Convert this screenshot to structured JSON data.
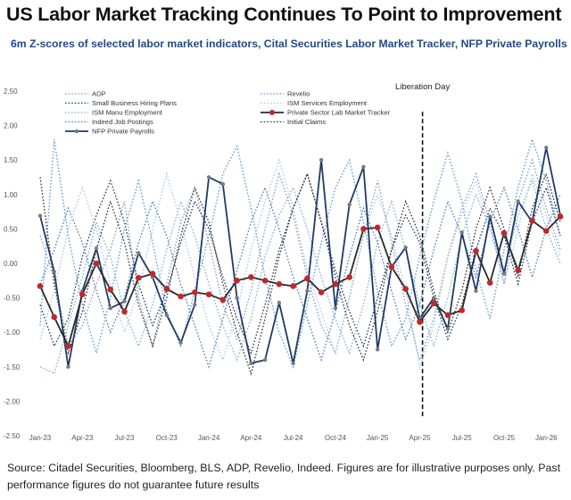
{
  "header": {
    "title": "US Labor Market Tracking Continues To Point to Improvement",
    "subtitle": "6m Z-scores of selected labor market indicators, Cital Securities Labor Market Tracker, NFP Private Payrolls"
  },
  "footer": {
    "line1": "Source: Citadel Securities, Bloomberg, BLS, ADP, Revelio, Indeed. Figures are for illustrative purposes only. Past",
    "line2": "performance figures do not guarantee future results"
  },
  "chart_data": {
    "type": "line",
    "ylim": [
      -2.5,
      2.5
    ],
    "yticks": [
      "2.50",
      "2.00",
      "1.50",
      "1.00",
      "0.50",
      "0.00",
      "-0.50",
      "-1.00",
      "-1.50",
      "-2.00",
      "-2.50"
    ],
    "ytick_values": [
      2.5,
      2.0,
      1.5,
      1.0,
      0.5,
      0.0,
      -0.5,
      -1.0,
      -1.5,
      -2.0,
      -2.5
    ],
    "xticks": [
      "Jan-23",
      "Apr-23",
      "Jul-23",
      "Oct-23",
      "Jan-24",
      "Apr-24",
      "Jul-24",
      "Oct-24",
      "Jan-25",
      "Apr-25",
      "Jul-25",
      "Oct-25",
      "Jan-26"
    ],
    "xtick_index": [
      0,
      3,
      6,
      9,
      12,
      15,
      18,
      21,
      24,
      27,
      30,
      33,
      36
    ],
    "n_points": 38,
    "grid": false,
    "legend_position": "top-left",
    "annotation": {
      "label": "Liberation Day",
      "x_index": 27.2
    },
    "series": [
      {
        "name": "ADP",
        "style": "dotted",
        "color": "#8a9db5",
        "values": [
          0.4,
          -0.2,
          -1.2,
          -0.9,
          -0.3,
          0.2,
          0.9,
          -0.5,
          -1.2,
          -0.3,
          0.6,
          1.1,
          0.3,
          -0.6,
          -1.1,
          -0.4,
          0.5,
          1.3,
          0.7,
          -0.2,
          -0.9,
          -1.3,
          -0.5,
          0.4,
          1.2,
          0.3,
          -0.6,
          -1.4,
          -0.8,
          0.1,
          0.8,
          1.3,
          0.6,
          -0.3,
          0.9,
          1.5,
          0.8,
          0.2
        ]
      },
      {
        "name": "Small Business Hiring Plans",
        "style": "dotted",
        "color": "#1f3a60",
        "values": [
          -0.6,
          -1.2,
          -0.8,
          0.1,
          0.7,
          1.2,
          0.6,
          -0.3,
          -0.9,
          -0.4,
          0.3,
          0.9,
          0.5,
          -0.2,
          -0.8,
          -1.3,
          -0.6,
          0.2,
          0.8,
          1.3,
          0.6,
          -0.1,
          -0.7,
          -1.2,
          -0.5,
          0.2,
          0.7,
          0.3,
          -0.5,
          -1.1,
          -0.6,
          0.2,
          0.8,
          0.4,
          -0.3,
          0.6,
          1.1,
          0.4
        ]
      },
      {
        "name": "ISM Manu Employment",
        "style": "dotted",
        "color": "#7fb1d8",
        "values": [
          -1.5,
          -1.6,
          -0.9,
          -0.2,
          0.6,
          0.1,
          -0.7,
          -1.2,
          -0.6,
          0.2,
          0.9,
          0.4,
          -0.3,
          -0.9,
          -1.4,
          -0.8,
          0.1,
          0.7,
          1.1,
          0.5,
          -0.2,
          -0.8,
          -1.3,
          -0.6,
          0.3,
          0.9,
          0.2,
          -0.6,
          -1.2,
          -0.5,
          0.4,
          1.0,
          0.5,
          -0.1,
          0.7,
          1.2,
          0.5,
          0.0
        ]
      },
      {
        "name": "Indeed Job Postings",
        "style": "dotted",
        "color": "#4a7eb5",
        "values": [
          -0.3,
          0.2,
          0.8,
          0.3,
          -0.4,
          -1.0,
          -0.5,
          0.3,
          0.9,
          0.4,
          -0.3,
          -0.9,
          -1.5,
          -0.8,
          -0.1,
          0.6,
          1.1,
          0.5,
          -0.2,
          -0.8,
          -1.4,
          -0.7,
          0.1,
          0.8,
          0.3,
          -0.4,
          -1.1,
          -0.6,
          0.2,
          0.9,
          0.4,
          -0.2,
          0.6,
          1.1,
          0.5,
          -0.2,
          0.5,
          1.0
        ]
      },
      {
        "name": "NFP Private Payrolls",
        "style": "solid-markers",
        "color": "#1f3a68",
        "marker_color": "#7a7a7a",
        "values": [
          0.69,
          -0.12,
          -1.5,
          -0.4,
          0.22,
          -0.65,
          -0.55,
          0.15,
          -0.2,
          -0.75,
          -1.15,
          -0.6,
          1.25,
          1.15,
          -0.5,
          -1.45,
          -1.4,
          -0.57,
          -1.45,
          -0.4,
          1.5,
          -0.65,
          0.85,
          1.4,
          -1.25,
          -0.05,
          0.23,
          -0.8,
          -0.5,
          -0.95,
          0.45,
          -0.4,
          0.68,
          -0.15,
          0.9,
          0.6,
          1.68,
          0.7
        ]
      },
      {
        "name": "Revelio",
        "style": "dotted",
        "color": "#5b9bd5",
        "values": [
          -0.9,
          1.8,
          0.4,
          -0.6,
          -1.3,
          -0.5,
          0.5,
          1.2,
          0.3,
          -0.7,
          -1.2,
          -0.4,
          0.4,
          1.3,
          1.7,
          0.8,
          -0.2,
          -1.0,
          -1.5,
          -0.6,
          0.3,
          1.1,
          1.5,
          0.6,
          -0.4,
          -1.2,
          -0.8,
          0.1,
          0.9,
          1.6,
          0.9,
          -0.1,
          -0.8,
          0.2,
          1.1,
          1.8,
          1.2,
          0.4
        ]
      },
      {
        "name": "ISM Services Employment",
        "style": "dotted",
        "color": "#a9c8e8",
        "values": [
          -1.1,
          -0.4,
          0.5,
          1.1,
          0.5,
          -0.3,
          -1.0,
          -0.4,
          0.5,
          1.3,
          0.6,
          -0.2,
          -0.9,
          -1.4,
          -0.7,
          0.2,
          0.9,
          1.5,
          0.8,
          -0.1,
          -0.7,
          -1.3,
          -0.5,
          0.4,
          1.0,
          0.4,
          -0.4,
          -1.5,
          -0.9,
          0.1,
          0.7,
          1.2,
          0.5,
          -0.3,
          0.5,
          1.3,
          0.7,
          0.1
        ]
      },
      {
        "name": "Private Sector Lab Market Tracker",
        "style": "solid-markers",
        "color": "#2a2a2a",
        "marker_color": "#c0282b",
        "values": [
          -0.33,
          -0.78,
          -1.2,
          -0.45,
          0.0,
          -0.38,
          -0.7,
          -0.21,
          -0.15,
          -0.37,
          -0.48,
          -0.42,
          -0.45,
          -0.53,
          -0.25,
          -0.2,
          -0.25,
          -0.3,
          -0.33,
          -0.22,
          -0.42,
          -0.3,
          -0.2,
          0.5,
          0.52,
          -0.05,
          -0.37,
          -0.85,
          -0.58,
          -0.75,
          -0.68,
          0.18,
          -0.28,
          0.44,
          -0.1,
          0.62,
          0.47,
          0.68
        ]
      },
      {
        "name": "Initial Claims",
        "style": "dotted",
        "color": "#333333",
        "values": [
          1.25,
          -0.3,
          -1.3,
          -0.7,
          0.2,
          0.9,
          0.3,
          -0.6,
          -1.2,
          -0.5,
          0.4,
          1.1,
          0.6,
          -0.3,
          -1.0,
          -1.6,
          -0.8,
          0.1,
          0.8,
          1.3,
          0.6,
          -0.2,
          -0.9,
          -1.4,
          -0.7,
          0.2,
          0.9,
          0.4,
          -0.4,
          -1.0,
          -0.4,
          0.5,
          1.1,
          0.5,
          -0.2,
          0.8,
          1.3,
          0.6
        ]
      }
    ]
  }
}
